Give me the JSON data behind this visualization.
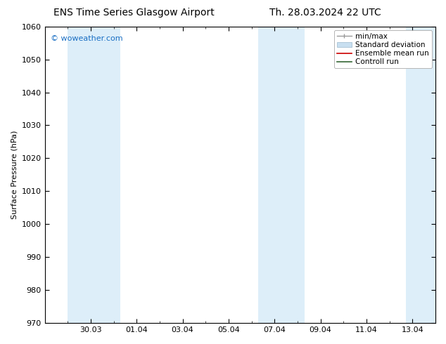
{
  "title_left": "ENS Time Series Glasgow Airport",
  "title_right": "Th. 28.03.2024 22 UTC",
  "ylabel": "Surface Pressure (hPa)",
  "ylim": [
    970,
    1060
  ],
  "yticks": [
    970,
    980,
    990,
    1000,
    1010,
    1020,
    1030,
    1040,
    1050,
    1060
  ],
  "xtick_labels": [
    "30.03",
    "01.04",
    "03.04",
    "05.04",
    "07.04",
    "09.04",
    "11.04",
    "13.04"
  ],
  "xtick_positions": [
    2,
    4,
    6,
    8,
    10,
    12,
    14,
    16
  ],
  "xlim": [
    0,
    17
  ],
  "shaded_bands": [
    {
      "x_start": 1.0,
      "x_end": 3.3,
      "color": "#ddeef9"
    },
    {
      "x_start": 9.3,
      "x_end": 11.3,
      "color": "#ddeef9"
    },
    {
      "x_start": 15.7,
      "x_end": 17.0,
      "color": "#ddeef9"
    }
  ],
  "watermark": "© woweather.com",
  "watermark_color": "#1a6fc4",
  "legend_items": [
    {
      "label": "min/max",
      "color": "#aaaaaa",
      "style": "errorbar"
    },
    {
      "label": "Standard deviation",
      "color": "#bbccdd",
      "style": "fill"
    },
    {
      "label": "Ensemble mean run",
      "color": "#cc0000",
      "style": "line"
    },
    {
      "label": "Controll run",
      "color": "#336633",
      "style": "line"
    }
  ],
  "bg_color": "#ffffff",
  "spine_color": "#000000",
  "font_color": "#000000",
  "title_fontsize": 10,
  "axis_label_fontsize": 8,
  "tick_fontsize": 8,
  "legend_fontsize": 7.5
}
